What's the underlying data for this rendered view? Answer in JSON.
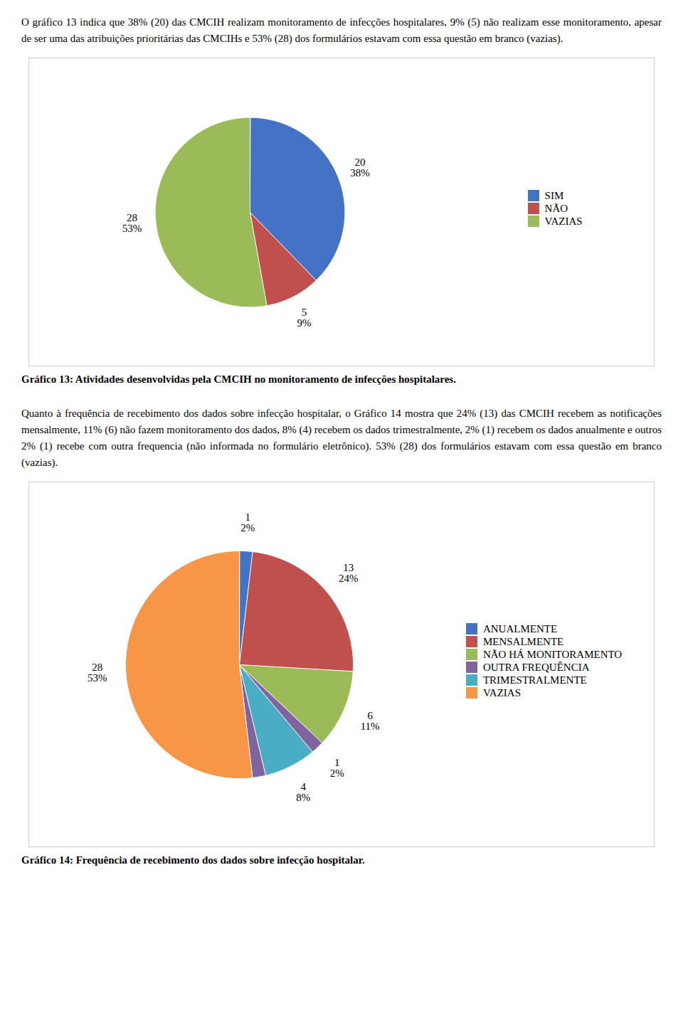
{
  "chart_data": [
    {
      "type": "pie",
      "subtitle": "O gráfico 13 indica que 38% (20) das CMCIH realizam monitoramento de infecções hospitalares, 9% (5) não realizam esse monitoramento, apesar de ser uma das atribuições prioritárias das CMCIHs e  53% (28) dos formulários estavam com essa questão em branco (vazias).",
      "title": "Gráfico 13: Atividades desenvolvidas pela CMCIH no monitoramento de infecções hospitalares.",
      "categories": [
        "SIM",
        "NÃO",
        "VAZIAS"
      ],
      "values": [
        20,
        5,
        28
      ],
      "colors": [
        "#4472C4",
        "#C0504D",
        "#9BBB59"
      ],
      "shares": [
        38,
        9,
        53
      ],
      "share_labels": [
        "38%",
        "9%",
        "53%"
      ],
      "data_labels": true,
      "legend": "right"
    },
    {
      "type": "pie",
      "subtitle": "Quanto à frequência de recebimento dos dados sobre infecção hospitalar, o Gráfico 14 mostra que 24% (13) das CMCIH recebem as notificações mensalmente, 11% (6) não fazem monitoramento dos dados, 8% (4) recebem os dados trimestralmente, 2% (1) recebem os dados anualmente e outros 2% (1) recebe com outra frequencia (não informada no formulário eletrônico). 53% (28) dos formulários estavam com essa questão em branco (vazias).",
      "title": "Gráfico 14: Frequência de recebimento dos dados sobre infecção hospitalar.",
      "categories": [
        "ANUALMENTE",
        "MENSALMENTE",
        "NÃO HÁ MONITORAMENTO",
        "OUTRA FREQUÊNCIA",
        "TRIMESTRALMENTE",
        null,
        "VAZIAS"
      ],
      "values": [
        1,
        13,
        6,
        1,
        4,
        1,
        28
      ],
      "value_labels": [
        "1",
        "13",
        "6",
        "1",
        "4",
        null,
        "28"
      ],
      "colors": [
        "#4472C4",
        "#C0504D",
        "#9BBB59",
        "#8064A2",
        "#4BACC6",
        "#8064A2",
        "#F79646"
      ],
      "shares": [
        2,
        24,
        11,
        2,
        8,
        null,
        53
      ],
      "share_labels": [
        "2%",
        "24%",
        "11%",
        "2%",
        "8%",
        null,
        "53%"
      ],
      "data_labels": true,
      "legend": "right"
    }
  ]
}
